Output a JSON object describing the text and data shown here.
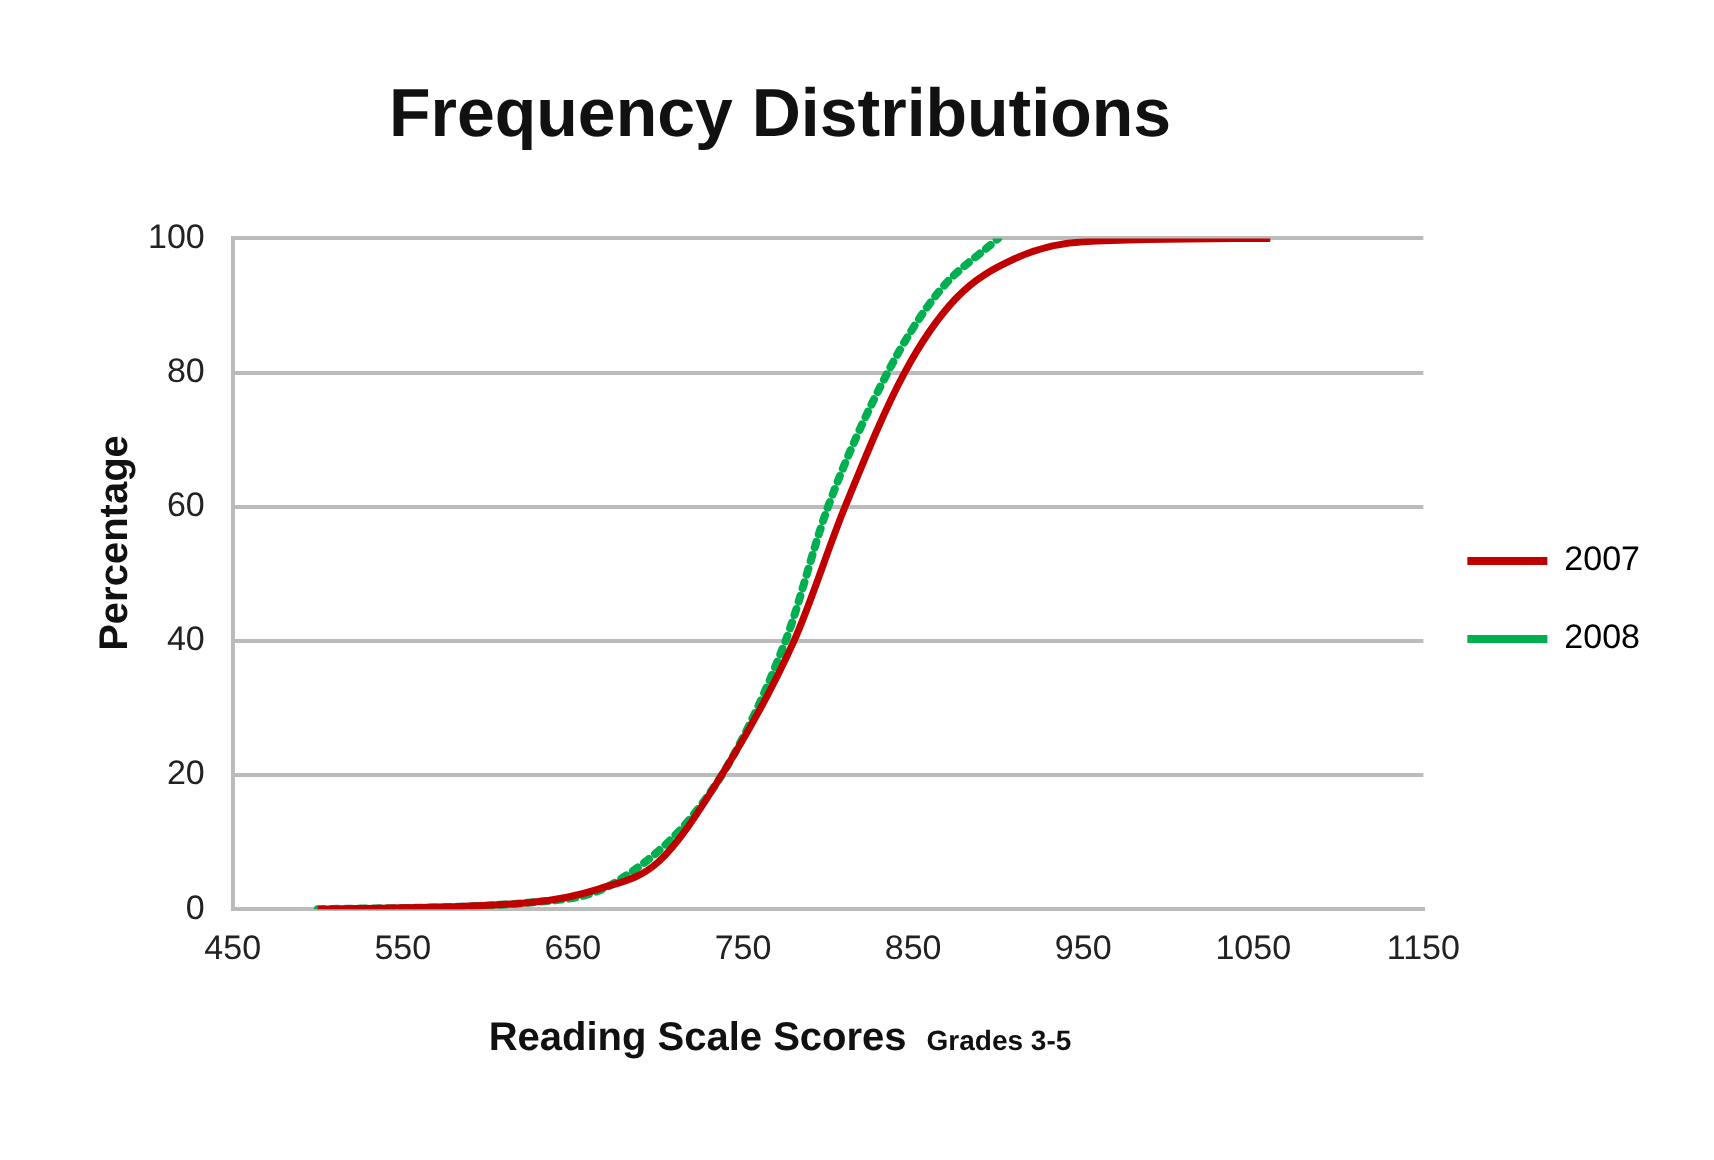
{
  "chart_data": {
    "type": "line",
    "title": "Frequency Distributions",
    "xlabel": "Reading Scale Scores",
    "ylabel": "Percentage",
    "annotations": [
      "Grades 3-5"
    ],
    "xlim": [
      450,
      1150
    ],
    "xticks": [
      450,
      550,
      650,
      750,
      850,
      950,
      1050,
      1150
    ],
    "ylim": [
      0,
      100
    ],
    "yticks": [
      0,
      20,
      40,
      60,
      80,
      100
    ],
    "grid": "y",
    "legend": "right",
    "marker": "none",
    "series": [
      {
        "name": "2007",
        "color": "#c00000",
        "line_style": "solid",
        "x": [
          500,
          625,
          665,
          700,
          735,
          780,
          810,
          845,
          875,
          910,
          950,
          1060
        ],
        "values": [
          0,
          1,
          3,
          7,
          19,
          40,
          60,
          80,
          91,
          97,
          99.5,
          100
        ]
      },
      {
        "name": "2008",
        "color": "#00b050",
        "line_style": "dotted",
        "x": [
          500,
          625,
          675,
          735,
          775,
          800,
          835,
          865,
          900
        ],
        "values": [
          0,
          1,
          4,
          19,
          40,
          60,
          80,
          92,
          100
        ]
      }
    ]
  }
}
